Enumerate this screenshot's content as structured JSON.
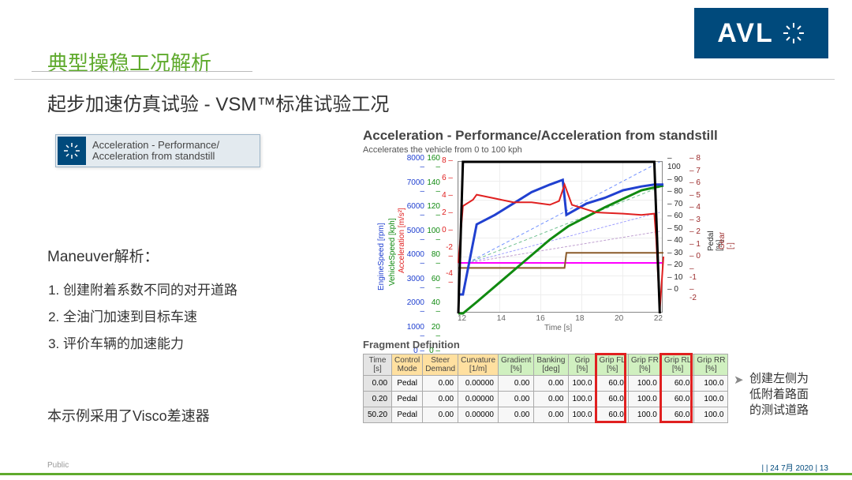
{
  "logo": {
    "text": "AVL"
  },
  "title_green": "典型操稳工况解析",
  "subtitle": "起步加速仿真试验 - VSM™标准试验工况",
  "task_badge": {
    "line1": "Acceleration - Performance/",
    "line2": "Acceleration from standstill"
  },
  "left": {
    "heading": "Maneuver解析：",
    "items": [
      "创建附着系数不同的对开道路",
      "全油门加速到目标车速",
      "评价车辆的加速能力"
    ],
    "note": "本示例采用了Visco差速器"
  },
  "chart": {
    "title": "Acceleration - Performance/Acceleration from standstill",
    "subtitle": "Accelerates the vehicle from 0 to 100 kph",
    "xlabel": "Time [s]",
    "x_ticks": [
      "12",
      "14",
      "16",
      "18",
      "20",
      "22"
    ],
    "y_accel": {
      "label": "Acceleration [m/s²]",
      "color": "#e02020",
      "min": -4,
      "max": 8,
      "ticks": [
        "8",
        "6",
        "4",
        "2",
        "0",
        "-2",
        "-4"
      ]
    },
    "y_vehspd": {
      "label": "VehicleSpeed [kph]",
      "color": "#108a10",
      "min": 0,
      "max": 160,
      "ticks": [
        "160",
        "140",
        "120",
        "100",
        "80",
        "60",
        "40",
        "20",
        "0"
      ]
    },
    "y_engspd": {
      "label": "EngineSpeed [rpm]",
      "color": "#2040d0",
      "min": 0,
      "max": 8000,
      "ticks": [
        "8000",
        "7000",
        "6000",
        "5000",
        "4000",
        "3000",
        "2000",
        "1000",
        "0"
      ]
    },
    "y_pedal": {
      "label": "Pedal [%]",
      "color": "#2a2a2a",
      "min": 0,
      "max": 100,
      "ticks": [
        "100",
        "90",
        "80",
        "70",
        "60",
        "50",
        "40",
        "30",
        "20",
        "10",
        "0"
      ]
    },
    "y_gear": {
      "label": "Gear [-]",
      "color": "#9b2a2a",
      "min": -2,
      "max": 8,
      "ticks": [
        "8",
        "7",
        "6",
        "5",
        "4",
        "3",
        "2",
        "1",
        "0",
        "-1",
        "-2"
      ]
    },
    "series": {
      "pedal": {
        "color": "#000",
        "width": 3,
        "points": [
          [
            12,
            0
          ],
          [
            12.25,
            100
          ],
          [
            22.7,
            100
          ],
          [
            23.0,
            0
          ]
        ]
      },
      "accel": {
        "color": "#e02020",
        "width": 2,
        "points": [
          [
            12,
            0
          ],
          [
            12.25,
            4.5
          ],
          [
            12.8,
            5.0
          ],
          [
            13,
            5.4
          ],
          [
            14,
            5.1
          ],
          [
            15,
            4.8
          ],
          [
            16,
            4.8
          ],
          [
            17,
            4.6
          ],
          [
            17.5,
            4.9
          ],
          [
            17.8,
            6.2
          ],
          [
            18.2,
            4.6
          ],
          [
            19.5,
            4.0
          ],
          [
            21,
            3.9
          ],
          [
            22,
            3.8
          ],
          [
            22.7,
            3.9
          ],
          [
            22.8,
            2
          ],
          [
            23.0,
            -3.8
          ],
          [
            23.2,
            0.5
          ]
        ]
      },
      "engspd": {
        "color": "#2040d0",
        "width": 3,
        "points": [
          [
            12,
            1000
          ],
          [
            12.25,
            1000
          ],
          [
            13,
            4700
          ],
          [
            14,
            5200
          ],
          [
            15,
            5800
          ],
          [
            16,
            6400
          ],
          [
            17,
            6800
          ],
          [
            17.7,
            7050
          ],
          [
            17.9,
            5200
          ],
          [
            19,
            5800
          ],
          [
            20,
            6100
          ],
          [
            21,
            6500
          ],
          [
            22,
            6700
          ],
          [
            22.7,
            6800
          ],
          [
            23.2,
            6800
          ]
        ]
      },
      "vehspd": {
        "color": "#108a10",
        "width": 3,
        "points": [
          [
            12,
            0
          ],
          [
            12.25,
            0
          ],
          [
            13,
            12
          ],
          [
            15,
            45
          ],
          [
            17,
            78
          ],
          [
            18,
            92
          ],
          [
            20,
            112
          ],
          [
            22,
            130
          ],
          [
            23.2,
            135
          ]
        ]
      },
      "gear": {
        "color": "#8a5a2a",
        "width": 2,
        "points": [
          [
            12,
            1
          ],
          [
            12.25,
            1
          ],
          [
            17.8,
            1
          ],
          [
            17.9,
            2
          ],
          [
            23.2,
            2
          ]
        ]
      },
      "magenta": {
        "color": "#ff00ff",
        "width": 2,
        "points": [
          [
            12,
            0
          ],
          [
            23.2,
            0
          ]
        ]
      },
      "dash1": {
        "color": "#7090ff",
        "width": 1,
        "dash": "4,3",
        "points": [
          [
            12.5,
            0
          ],
          [
            23,
            8
          ]
        ]
      },
      "dash2": {
        "color": "#70c090",
        "width": 1,
        "dash": "4,3",
        "points": [
          [
            12.5,
            0
          ],
          [
            23,
            6
          ]
        ]
      },
      "dash3": {
        "color": "#a0a0ff",
        "width": 1,
        "dash": "3,2",
        "points": [
          [
            12.5,
            0
          ],
          [
            23,
            4
          ]
        ]
      },
      "dash4": {
        "color": "#c0a0d0",
        "width": 1,
        "dash": "3,2",
        "points": [
          [
            12.5,
            0
          ],
          [
            23,
            2.5
          ]
        ]
      }
    }
  },
  "fragment": {
    "title": "Fragment Definition",
    "columns": [
      {
        "l1": "Time",
        "l2": "[s]"
      },
      {
        "l1": "Control",
        "l2": "Mode"
      },
      {
        "l1": "Steer",
        "l2": "Demand"
      },
      {
        "l1": "Curvature",
        "l2": "[1/m]"
      },
      {
        "l1": "Gradient",
        "l2": "[%]"
      },
      {
        "l1": "Banking",
        "l2": "[deg]"
      },
      {
        "l1": "Grip",
        "l2": "[%]"
      },
      {
        "l1": "Grip FL",
        "l2": "[%]"
      },
      {
        "l1": "Grip FR",
        "l2": "[%]"
      },
      {
        "l1": "Grip RL",
        "l2": "[%]"
      },
      {
        "l1": "Grip RR",
        "l2": "[%]"
      }
    ],
    "rows": [
      [
        "0.00",
        "Pedal",
        "0.00",
        "0.00000",
        "0.00",
        "0.00",
        "100.0",
        "60.0",
        "100.0",
        "60.0",
        "100.0"
      ],
      [
        "0.20",
        "Pedal",
        "0.00",
        "0.00000",
        "0.00",
        "0.00",
        "100.0",
        "60.0",
        "100.0",
        "60.0",
        "100.0"
      ],
      [
        "50.20",
        "Pedal",
        "0.00",
        "0.00000",
        "0.00",
        "0.00",
        "100.0",
        "60.0",
        "100.0",
        "60.0",
        "100.0"
      ]
    ]
  },
  "right_note": {
    "l1": "创建左侧为",
    "l2": "低附着路面",
    "l3": "的测试道路"
  },
  "highlight": {
    "cols": [
      7,
      9
    ],
    "color": "#e02020"
  },
  "footer": {
    "left": "Public",
    "right": "|  | 24 7月 2020 | 13"
  }
}
